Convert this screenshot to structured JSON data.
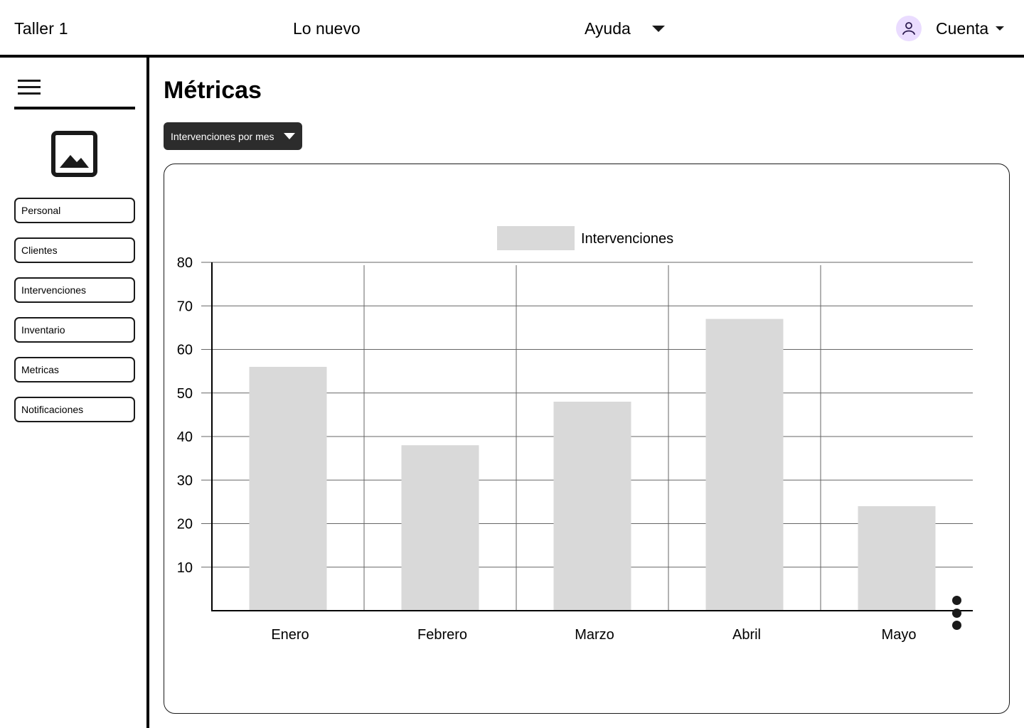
{
  "header": {
    "brand": "Taller 1",
    "nav_new": "Lo nuevo",
    "nav_help": "Ayuda",
    "account_label": "Cuenta",
    "icons": {
      "avatar": "user-icon",
      "help_menu": "chevron-down-icon",
      "account_menu": "chevron-down-icon"
    },
    "colors": {
      "avatar_bg": "#eadcff",
      "avatar_stroke": "#2b1a4f"
    }
  },
  "sidebar": {
    "menu_icon": "hamburger-menu-icon",
    "logo_icon": "image-placeholder-icon",
    "items": [
      {
        "label": "Personal"
      },
      {
        "label": "Clientes"
      },
      {
        "label": "Intervenciones"
      },
      {
        "label": "Inventario"
      },
      {
        "label": "Metricas"
      },
      {
        "label": "Notificaciones"
      }
    ]
  },
  "main": {
    "title": "Métricas",
    "selector": {
      "value": "Intervenciones por mes",
      "icon": "chevron-down-icon",
      "bg": "#2c2c2c"
    },
    "more_icon": "more-vertical-icon"
  },
  "chart_data": {
    "type": "bar",
    "title": "",
    "xlabel": "",
    "ylabel": "",
    "categories": [
      "Enero",
      "Febrero",
      "Marzo",
      "Abril",
      "Mayo"
    ],
    "series": [
      {
        "name": "Intervenciones",
        "values": [
          56,
          38,
          48,
          67,
          24
        ],
        "color": "#d9d9d9"
      }
    ],
    "y_ticks": [
      10,
      20,
      30,
      40,
      50,
      60,
      70,
      80
    ],
    "ylim": [
      0,
      80
    ],
    "grid": true,
    "legend": "top-center"
  }
}
